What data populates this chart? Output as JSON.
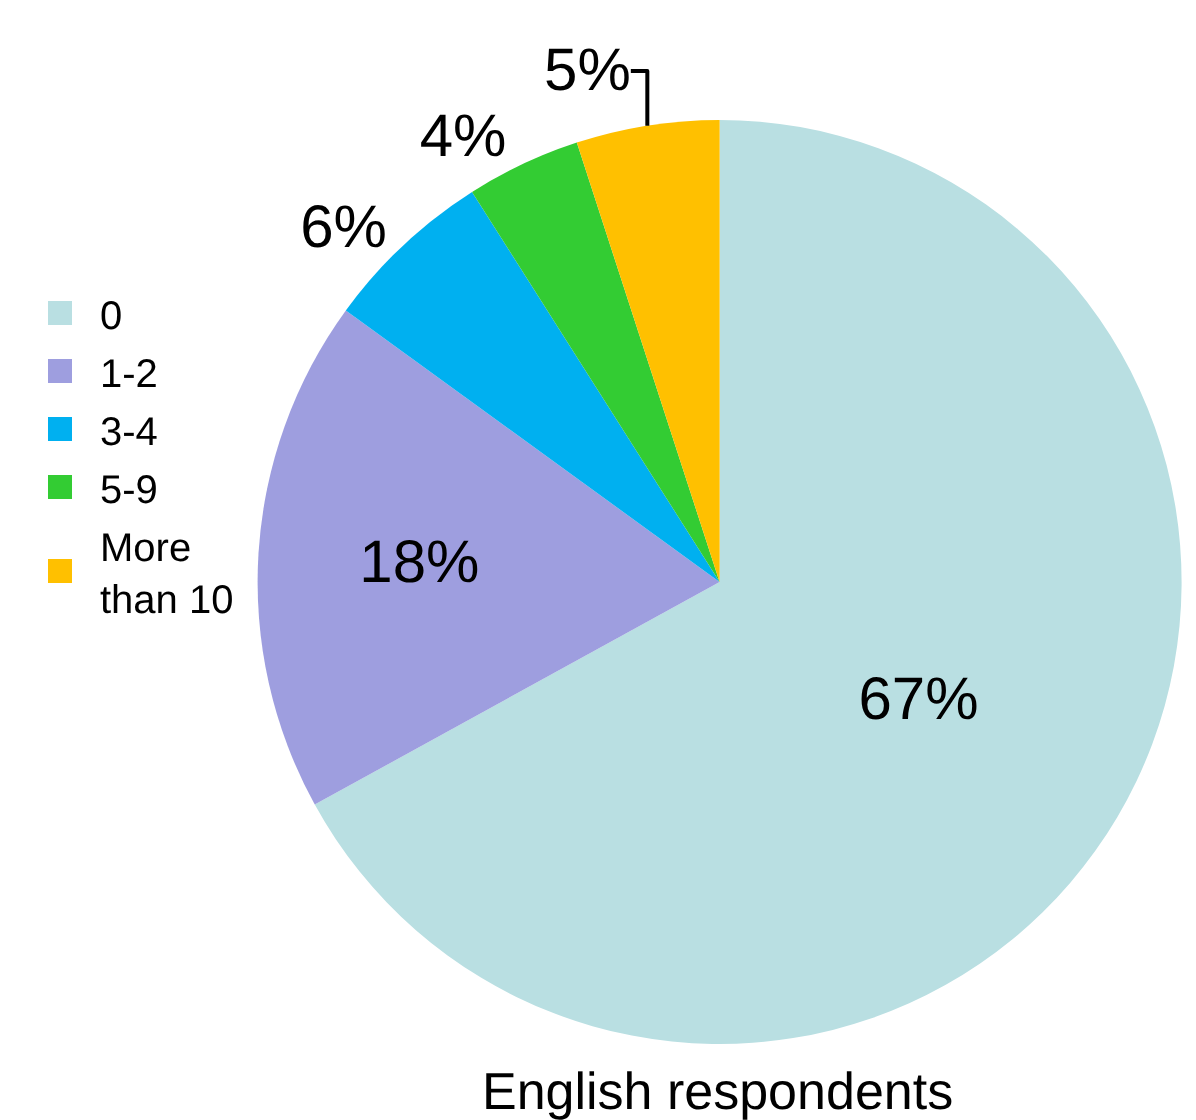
{
  "chart_data": {
    "type": "pie",
    "title": "English respondents",
    "categories": [
      "0",
      "1-2",
      "3-4",
      "5-9",
      "More than 10"
    ],
    "values": [
      67,
      18,
      6,
      4,
      5
    ],
    "value_labels": [
      "67%",
      "18%",
      "6%",
      "4%",
      "5%"
    ],
    "colors": [
      "#b9dfe2",
      "#9e9edf",
      "#00b0f0",
      "#33cc33",
      "#ffc000"
    ],
    "legend": "left"
  }
}
